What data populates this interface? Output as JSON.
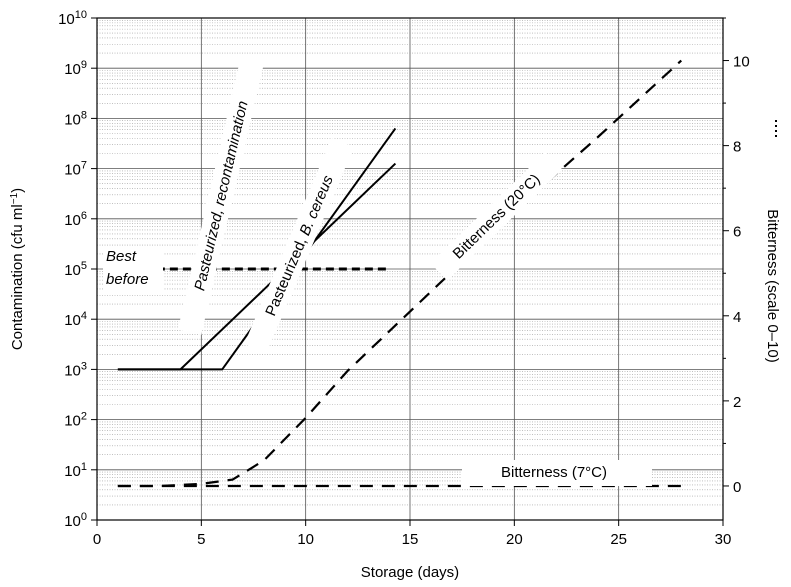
{
  "chart_data": {
    "type": "line",
    "xlabel": "Storage (days)",
    "ylabel": {
      "main": "Contamination (cfu ml",
      "sup": "−1",
      "close": ")"
    },
    "y2label": "Bitterness (scale 0–10)",
    "xlim": [
      0,
      30
    ],
    "ylim_log10": [
      0,
      10
    ],
    "y_scale": "log",
    "y2lim": [
      -0.8,
      11
    ],
    "x_ticks": [
      0,
      5,
      10,
      15,
      20,
      25,
      30
    ],
    "y_ticks": [
      {
        "base": "10",
        "exp": "0"
      },
      {
        "base": "10",
        "exp": "1"
      },
      {
        "base": "10",
        "exp": "2"
      },
      {
        "base": "10",
        "exp": "3"
      },
      {
        "base": "10",
        "exp": "4"
      },
      {
        "base": "10",
        "exp": "5"
      },
      {
        "base": "10",
        "exp": "6"
      },
      {
        "base": "10",
        "exp": "7"
      },
      {
        "base": "10",
        "exp": "8"
      },
      {
        "base": "10",
        "exp": "9"
      },
      {
        "base": "10",
        "exp": "10"
      }
    ],
    "y2_ticks": [
      0,
      2,
      4,
      6,
      8,
      10
    ],
    "grid": true,
    "series": [
      {
        "name": "Pasteurized, recontamination",
        "axis": "left",
        "style": "solid",
        "x": [
          1,
          4,
          14.3
        ],
        "y_log10": [
          3,
          3,
          7.1
        ]
      },
      {
        "name": "Pasteurized, B. cereus",
        "axis": "left",
        "style": "solid",
        "x": [
          1,
          6,
          14.3
        ],
        "y_log10": [
          3,
          3,
          7.8
        ]
      },
      {
        "name": "Bitterness (20°C)",
        "axis": "right",
        "style": "dashed",
        "x": [
          1,
          3,
          5,
          6.5,
          8,
          10,
          12,
          15,
          18,
          21,
          24,
          26,
          28
        ],
        "y": [
          0,
          0,
          0.05,
          0.15,
          0.6,
          1.6,
          2.7,
          4.1,
          5.5,
          6.9,
          8.2,
          9.1,
          10
        ]
      },
      {
        "name": "Bitterness (7°C)",
        "axis": "right",
        "style": "dashed",
        "x": [
          1,
          28
        ],
        "y": [
          0,
          0
        ]
      }
    ],
    "best_before": {
      "label_line1": "Best",
      "label_line2": "before",
      "y_log10": 5,
      "x": [
        1,
        14
      ]
    },
    "annotations": {
      "recontamination": "Pasteurized, recontamination",
      "b_cereus_prefix": "Pasteurized, ",
      "b_cereus_italic": "B. cereus",
      "bitterness_20": "Bitterness (20°C)",
      "bitterness_7": "Bitterness (7°C)"
    },
    "legend_key_sample": "dotted-line"
  }
}
